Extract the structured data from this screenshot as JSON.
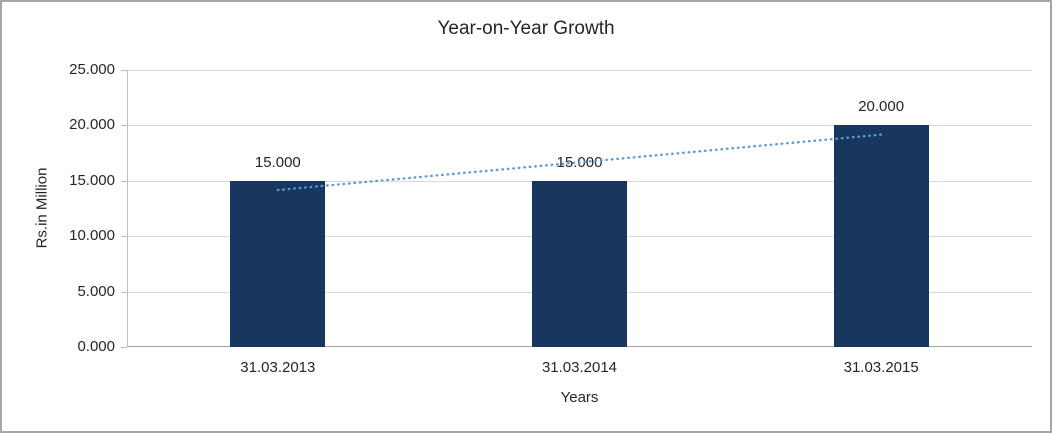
{
  "chart_data": {
    "type": "bar",
    "title": "Year-on-Year Growth",
    "categories": [
      "31.03.2013",
      "31.03.2014",
      "31.03.2015"
    ],
    "values": [
      15000,
      15000,
      20000
    ],
    "data_labels": [
      "15.000",
      "15.000",
      "20.000"
    ],
    "xlabel": "Years",
    "ylabel": "Rs.in Million",
    "ylim": [
      0,
      25000
    ],
    "yticks": [
      0,
      5000,
      10000,
      15000,
      20000,
      25000
    ],
    "ytick_labels": [
      "0.000",
      "5.000",
      "10.000",
      "15.000",
      "20.000",
      "25.000"
    ],
    "grid": true,
    "legend": "none",
    "trendline": {
      "type": "linear",
      "style": "dotted",
      "start_value": 14167,
      "end_value": 19167
    }
  },
  "colors": {
    "bar": "#17375E",
    "trendline": "#5B9BD5",
    "gridline": "#D9D9D9",
    "axis_line": "#BFBFBF",
    "x_axis_line": "#A6A6A6",
    "frame_border": "#A6A6A6",
    "text": "#262626"
  }
}
